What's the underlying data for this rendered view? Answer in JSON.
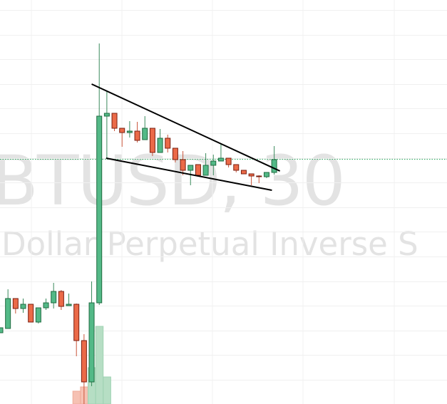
{
  "watermark": {
    "symbol_line": "BTUSD, 30",
    "description_line": "Dollar Perpetual Inverse S"
  },
  "colors": {
    "up_body": "#53b987",
    "up_border": "#1f6b40",
    "down_body": "#eb6a48",
    "down_border": "#7a1f10",
    "up_volume": "#b6dec4",
    "down_volume": "#f6c1b3",
    "grid": "#f0f0f0",
    "trendline": "#000000",
    "price_line": "#26a65b"
  },
  "chart_data": {
    "type": "candlestick",
    "title": "",
    "grid": true,
    "axes_visible": false,
    "candles": [
      [
        100,
        107,
        100,
        107
      ],
      [
        106,
        161,
        106,
        148
      ],
      [
        148,
        148,
        127,
        134
      ],
      [
        134,
        148,
        128,
        140
      ],
      [
        140,
        140,
        115,
        115
      ],
      [
        115,
        135,
        113,
        135
      ],
      [
        135,
        148,
        132,
        142
      ],
      [
        142,
        170,
        134,
        158
      ],
      [
        158,
        160,
        132,
        137
      ],
      [
        138,
        155,
        138,
        140
      ],
      [
        140,
        141,
        67,
        89
      ],
      [
        89,
        98,
        0,
        31
      ],
      [
        31,
        172,
        25,
        142
      ],
      [
        142,
        506,
        139,
        404
      ],
      [
        404,
        439,
        345,
        408
      ],
      [
        408,
        408,
        383,
        387
      ],
      [
        387,
        387,
        361,
        381
      ],
      [
        381,
        397,
        374,
        383
      ],
      [
        383,
        396,
        367,
        370
      ],
      [
        371,
        404,
        371,
        387
      ],
      [
        387,
        387,
        348,
        353
      ],
      [
        353,
        386,
        353,
        373
      ],
      [
        373,
        378,
        353,
        359
      ],
      [
        359,
        359,
        339,
        343
      ],
      [
        343,
        355,
        321,
        328
      ],
      [
        328,
        335,
        307,
        335
      ],
      [
        336,
        336,
        319,
        321
      ],
      [
        321,
        352,
        321,
        335
      ],
      [
        335,
        350,
        321,
        341
      ],
      [
        341,
        365,
        341,
        345
      ],
      [
        345,
        345,
        332,
        336
      ],
      [
        336,
        336,
        325,
        328
      ],
      [
        328,
        328,
        323,
        323
      ],
      [
        323,
        323,
        307,
        320
      ],
      [
        320,
        321,
        310,
        319
      ],
      [
        319,
        325,
        317,
        325
      ],
      [
        325,
        362,
        322,
        343
      ]
    ],
    "candle_format": "open,high,low,close",
    "volume": [
      {
        "index": 10,
        "value": 18,
        "direction": "down"
      },
      {
        "index": 11,
        "value": 24,
        "direction": "down"
      },
      {
        "index": 12,
        "value": 51,
        "direction": "up"
      },
      {
        "index": 13,
        "value": 109,
        "direction": "up"
      },
      {
        "index": 14,
        "value": 38,
        "direction": "up"
      }
    ],
    "trendlines": [
      {
        "from": [
          12,
          449
        ],
        "to": [
          36.75,
          327
        ]
      },
      {
        "from": [
          13.9,
          345
        ],
        "to": [
          35.7,
          300
        ]
      }
    ],
    "last_price_line": 344
  }
}
